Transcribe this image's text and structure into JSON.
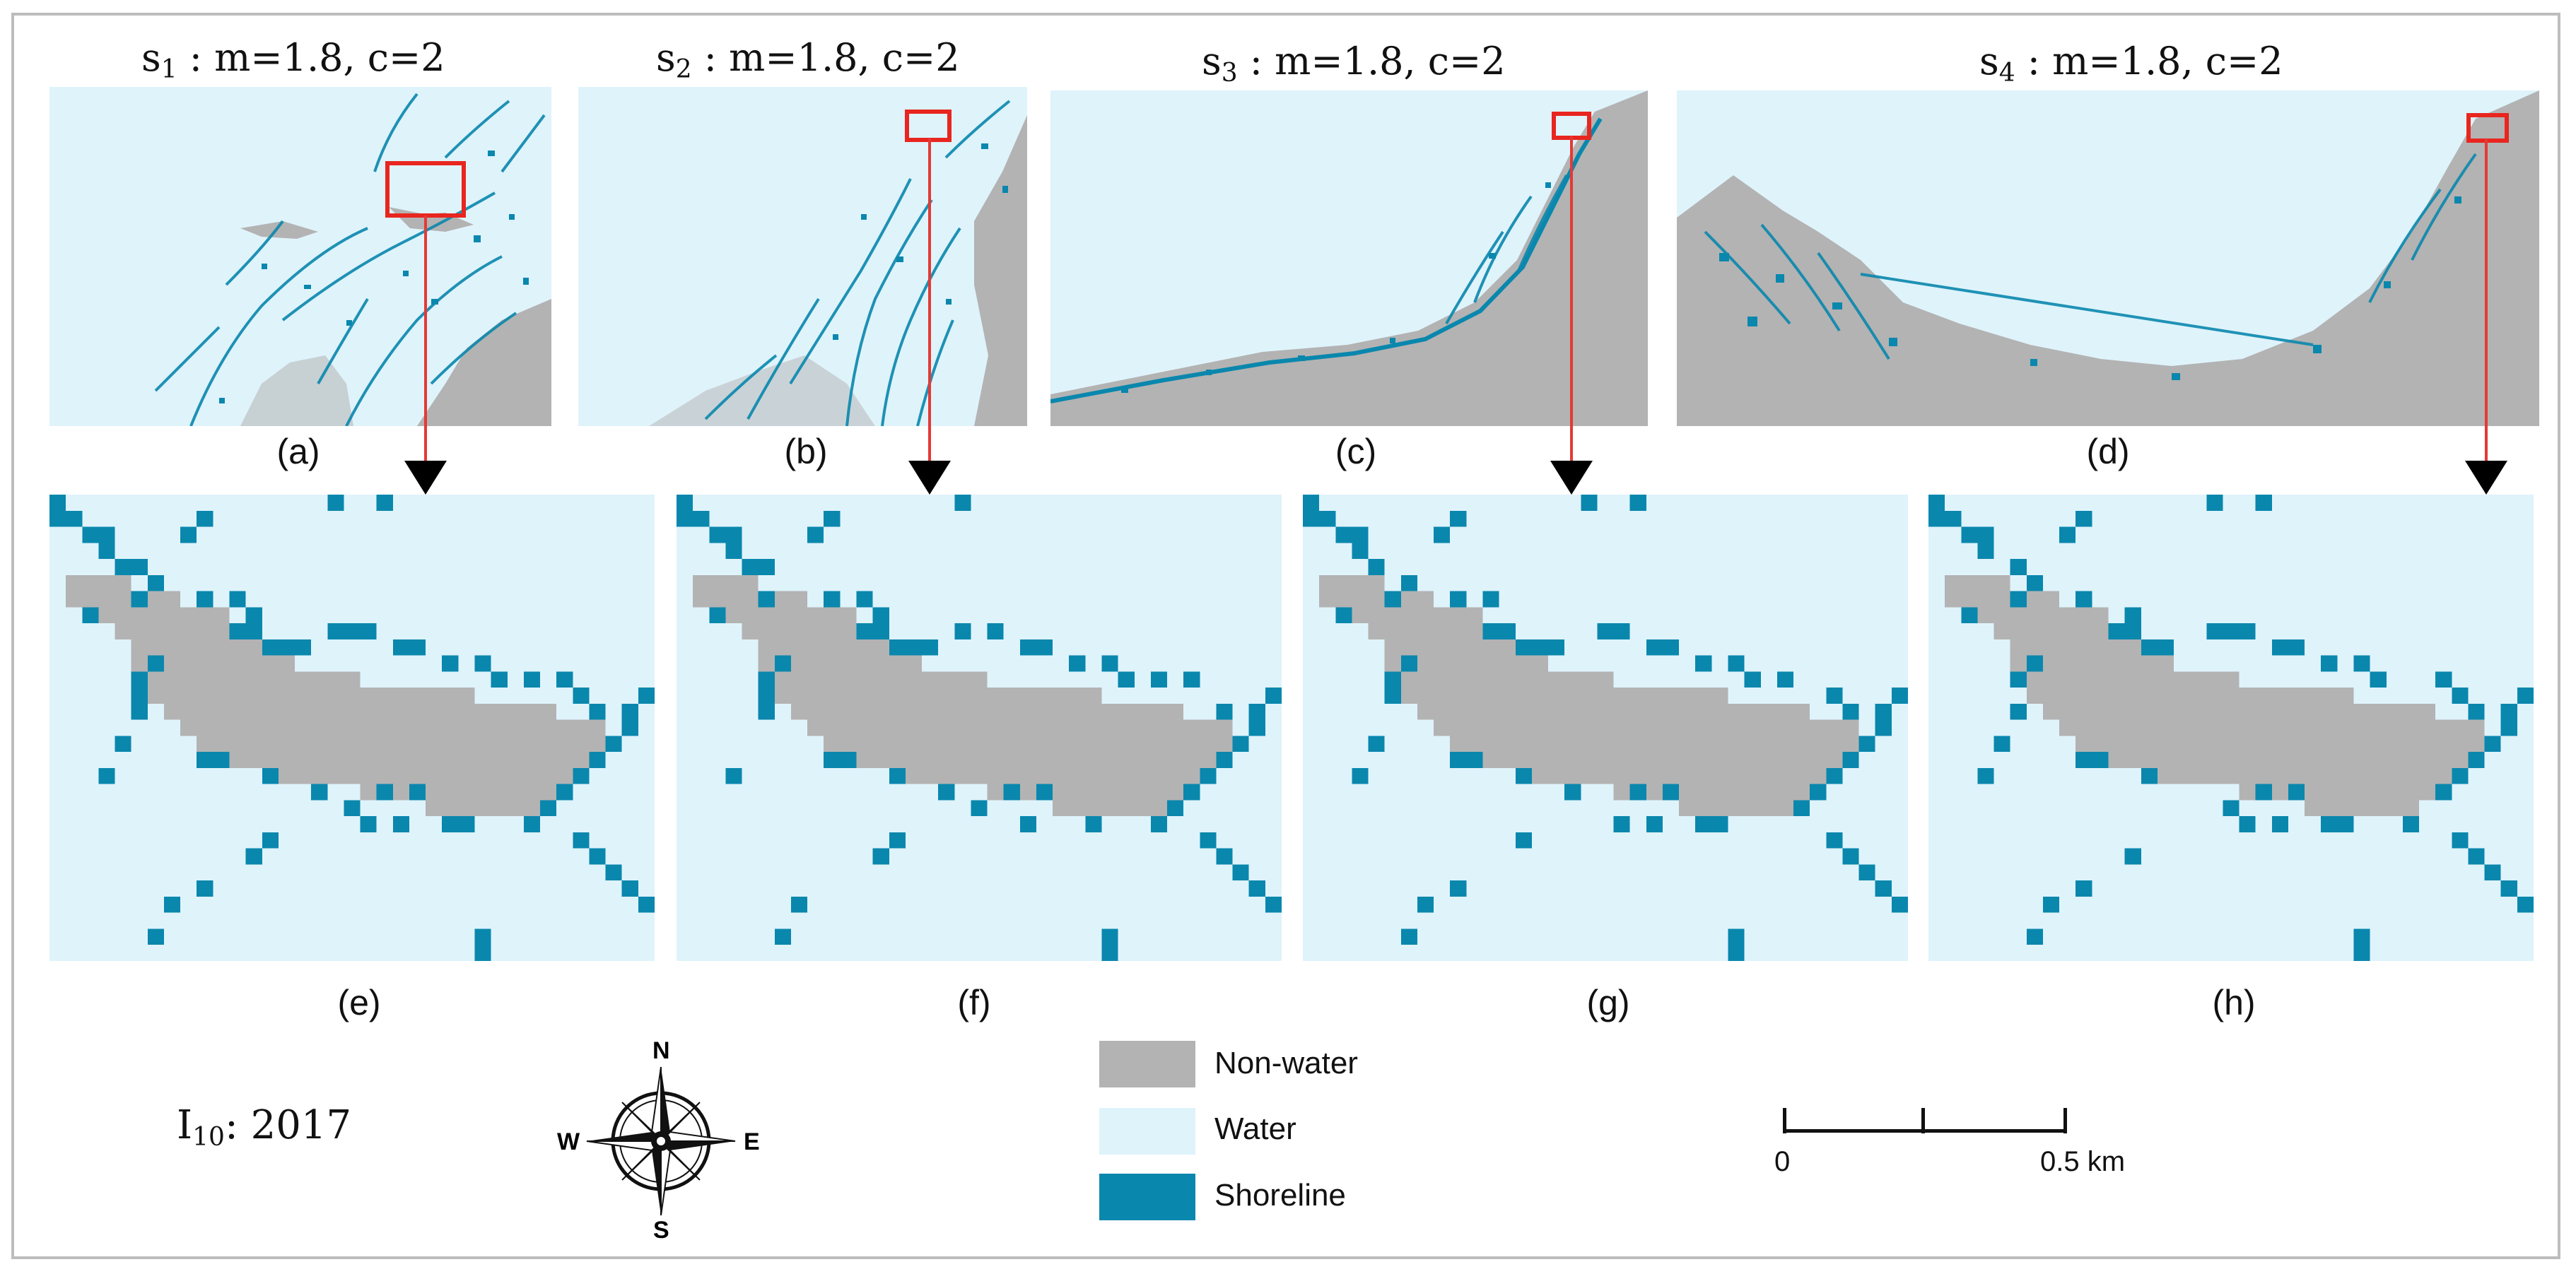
{
  "figure": {
    "panels": [
      {
        "id": "s1",
        "title_letter": "s",
        "title_sub": "1",
        "title_params": " : m=1.8, c=2",
        "label": "(a)"
      },
      {
        "id": "s2",
        "title_letter": "s",
        "title_sub": "2",
        "title_params": " : m=1.8, c=2",
        "label": "(b)"
      },
      {
        "id": "s3",
        "title_letter": "s",
        "title_sub": "3",
        "title_params": " : m=1.8, c=2",
        "label": "(c)"
      },
      {
        "id": "s4",
        "title_letter": "s",
        "title_sub": "4",
        "title_params": " : m=1.8, c=2",
        "label": "(d)"
      }
    ],
    "zoom_panels": [
      {
        "label": "(e)"
      },
      {
        "label": "(f)"
      },
      {
        "label": "(g)"
      },
      {
        "label": "(h)"
      }
    ],
    "image_id": {
      "letter": "I",
      "sub": "10",
      "rest": ": 2017"
    },
    "legend": [
      {
        "label": "Non-water",
        "color": "#b3b3b3"
      },
      {
        "label": "Water",
        "color": "#dff3fb"
      },
      {
        "label": "Shoreline",
        "color": "#0a87ad"
      }
    ],
    "compass": {
      "n": "N",
      "s": "S",
      "e": "E",
      "w": "W"
    },
    "scale_bar": {
      "start": "0",
      "end": "0.5 km"
    },
    "colors": {
      "water": "#dff3fb",
      "land": "#b3b3b3",
      "shore": "#0a87ad",
      "highlight": "#e8261f",
      "arrow": "#e53935"
    }
  }
}
